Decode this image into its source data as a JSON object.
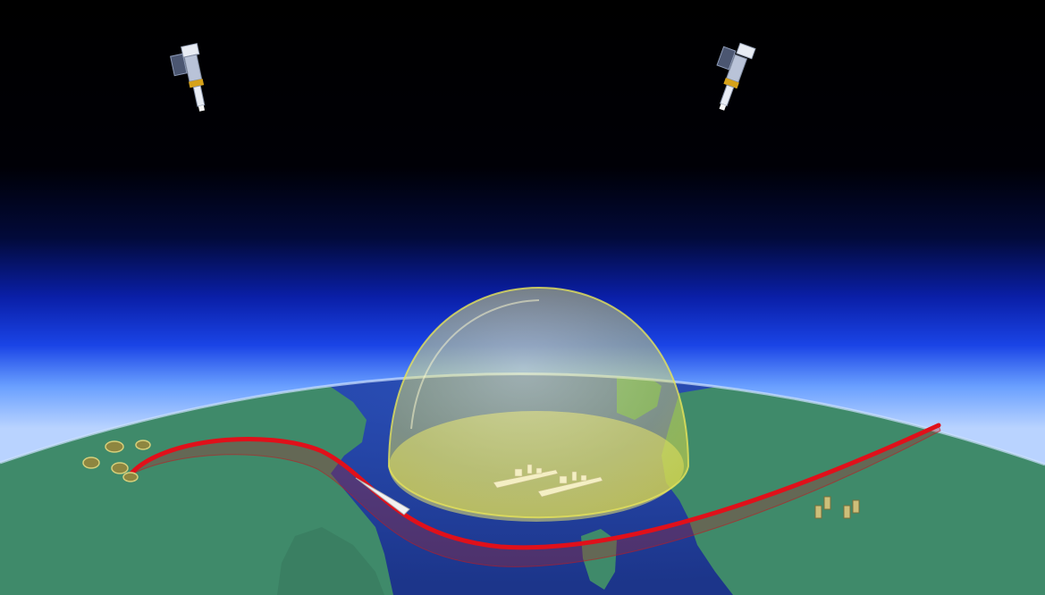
{
  "scene": {
    "colors": {
      "space": "#000000",
      "atmosphere_deep": "#0a22c8",
      "atmosphere_glow": "#7fb0ff",
      "ocean": "#1f3d9e",
      "land": "#3f8a6a",
      "dome": "#f3f06a",
      "trajectory": "#e0101a",
      "satellite_body": "#b9c3d8",
      "satellite_band": "#d6a21a"
    },
    "elements": {
      "satellites": [
        "satellite-left",
        "satellite-right"
      ],
      "ships": [
        "warship-1",
        "warship-2"
      ],
      "launch_sites": [
        "launch-site-west",
        "interceptor-site-east"
      ]
    }
  }
}
